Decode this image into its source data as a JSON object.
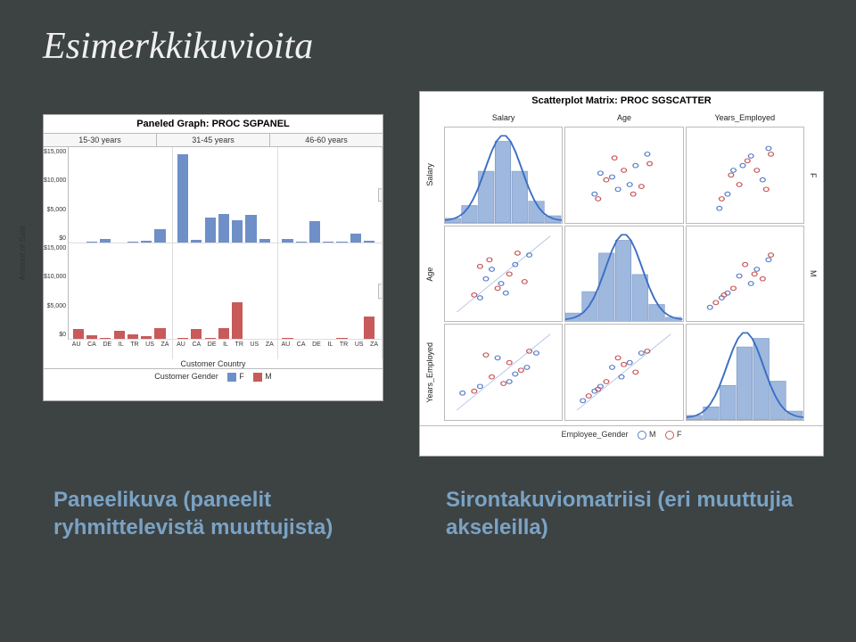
{
  "slide": {
    "title": "Esimerkkikuvioita",
    "bg_color": "#3d4243",
    "title_color": "#f0f0f0",
    "caption_color": "#7aa3c4"
  },
  "panel_chart": {
    "type": "bar",
    "title": "Paneled Graph: PROC SGPANEL",
    "col_facets": [
      "15-30 years",
      "31-45 years",
      "46-60 years"
    ],
    "row_facets": [
      "F",
      "M"
    ],
    "ylabel": "Amount of Sale",
    "xlabel": "Customer Country",
    "yticks": [
      "$15,000",
      "$10,000",
      "$5,000",
      "$0"
    ],
    "ymax": 16000,
    "xticks": [
      "AU",
      "CA",
      "DE",
      "IL",
      "TR",
      "US",
      "ZA"
    ],
    "legend_title": "Customer Gender",
    "colors": {
      "F": "#6f8fc8",
      "M": "#c85a5a"
    },
    "data": {
      "15-30 years": {
        "F": [
          0,
          200,
          600,
          0,
          200,
          300,
          2300
        ],
        "M": [
          1600,
          600,
          200,
          1400,
          700,
          400,
          1800
        ]
      },
      "31-45 years": {
        "F": [
          14800,
          400,
          4200,
          4800,
          3800,
          4600,
          600
        ],
        "M": [
          200,
          1600,
          200,
          1800,
          6200,
          0,
          0
        ]
      },
      "46-60 years": {
        "F": [
          600,
          200,
          3600,
          200,
          200,
          1500,
          300
        ],
        "M": [
          200,
          0,
          0,
          0,
          200,
          0,
          3800
        ]
      }
    }
  },
  "scatter_matrix": {
    "type": "scatterplot-matrix",
    "title": "Scatterplot Matrix: PROC SGSCATTER",
    "vars": [
      "Salary",
      "Age",
      "Years_Employed"
    ],
    "side_labels": [
      "F",
      "M"
    ],
    "legend_title": "Employee_Gender",
    "colors": {
      "M": "#5a7fc8",
      "F": "#c85a5a",
      "hist_fill": "#9fb8dd",
      "curve": "#3a6fc4",
      "grid": "#e6e6e6"
    },
    "points": {
      "Salary_Age": {
        "M": [
          [
            30,
            52
          ],
          [
            45,
            35
          ],
          [
            60,
            60
          ],
          [
            70,
            72
          ],
          [
            25,
            30
          ],
          [
            55,
            40
          ],
          [
            40,
            48
          ]
        ],
        "F": [
          [
            28,
            25
          ],
          [
            35,
            45
          ],
          [
            50,
            55
          ],
          [
            65,
            38
          ],
          [
            72,
            62
          ],
          [
            42,
            68
          ],
          [
            58,
            30
          ]
        ]
      },
      "Salary_Years": {
        "M": [
          [
            28,
            15
          ],
          [
            40,
            55
          ],
          [
            55,
            70
          ],
          [
            65,
            45
          ],
          [
            35,
            30
          ],
          [
            70,
            78
          ],
          [
            48,
            60
          ]
        ],
        "F": [
          [
            30,
            25
          ],
          [
            45,
            40
          ],
          [
            52,
            65
          ],
          [
            60,
            55
          ],
          [
            68,
            35
          ],
          [
            38,
            50
          ],
          [
            72,
            72
          ]
        ]
      },
      "Age_Years": {
        "M": [
          [
            20,
            15
          ],
          [
            35,
            30
          ],
          [
            45,
            48
          ],
          [
            55,
            40
          ],
          [
            60,
            55
          ],
          [
            70,
            65
          ],
          [
            30,
            25
          ]
        ],
        "F": [
          [
            25,
            20
          ],
          [
            40,
            35
          ],
          [
            50,
            60
          ],
          [
            58,
            50
          ],
          [
            65,
            45
          ],
          [
            72,
            70
          ],
          [
            32,
            28
          ]
        ]
      }
    },
    "histograms": {
      "Salary": {
        "bins": [
          0.05,
          0.2,
          0.6,
          0.95,
          0.6,
          0.25,
          0.08
        ],
        "curve": true
      },
      "Age": {
        "bins": [
          0.1,
          0.35,
          0.8,
          0.95,
          0.55,
          0.2,
          0.05
        ],
        "curve": true
      },
      "Years": {
        "bins": [
          0.05,
          0.15,
          0.4,
          0.85,
          0.95,
          0.45,
          0.1
        ],
        "curve": true
      }
    }
  },
  "captions": {
    "left": "Paneelikuva (paneelit ryhmittelevistä muuttujista)",
    "right": "Sirontakuviomatriisi (eri muuttujia akseleilla)"
  }
}
